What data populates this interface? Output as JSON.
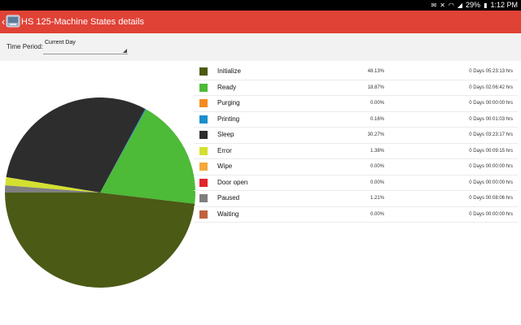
{
  "status_bar": {
    "battery": "29%",
    "time": "1:12 PM"
  },
  "app_bar": {
    "title": "HS 125-Machine States details"
  },
  "filter": {
    "label": "Time Period:",
    "value": "Current Day"
  },
  "chart_data": {
    "type": "pie",
    "slices": [
      {
        "label": "Initialize",
        "value": 48.13,
        "color": "#4b5a15",
        "percent": "48.13%",
        "duration": "0 Days 05:23:13 hrs"
      },
      {
        "label": "Ready",
        "value": 18.87,
        "color": "#4dba38",
        "percent": "18.87%",
        "duration": "0 Days 02:06:42 hrs"
      },
      {
        "label": "Purging",
        "value": 0.0,
        "color": "#f58b1f",
        "percent": "0.00%",
        "duration": "0 Days 00:00:00 hrs"
      },
      {
        "label": "Printing",
        "value": 0.16,
        "color": "#1a8fcc",
        "percent": "0.16%",
        "duration": "0 Days 00:01:03 hrs"
      },
      {
        "label": "Sleep",
        "value": 30.27,
        "color": "#2d2d2d",
        "percent": "30.27%",
        "duration": "0 Days 03:23:17 hrs"
      },
      {
        "label": "Error",
        "value": 1.38,
        "color": "#d4e030",
        "percent": "1.38%",
        "duration": "0 Days 00:09:15 hrs"
      },
      {
        "label": "Wipe",
        "value": 0.0,
        "color": "#f3a93b",
        "percent": "0.00%",
        "duration": "0 Days 00:00:00 hrs"
      },
      {
        "label": "Door open",
        "value": 0.0,
        "color": "#e3242b",
        "percent": "0.00%",
        "duration": "0 Days 00:00:00 hrs"
      },
      {
        "label": "Paused",
        "value": 1.21,
        "color": "#7f7f7f",
        "percent": "1.21%",
        "duration": "0 Days 00:08:06 hrs"
      },
      {
        "label": "Waiting",
        "value": 0.0,
        "color": "#c0623e",
        "percent": "0.00%",
        "duration": "0 Days 00:00:00 hrs"
      }
    ]
  }
}
